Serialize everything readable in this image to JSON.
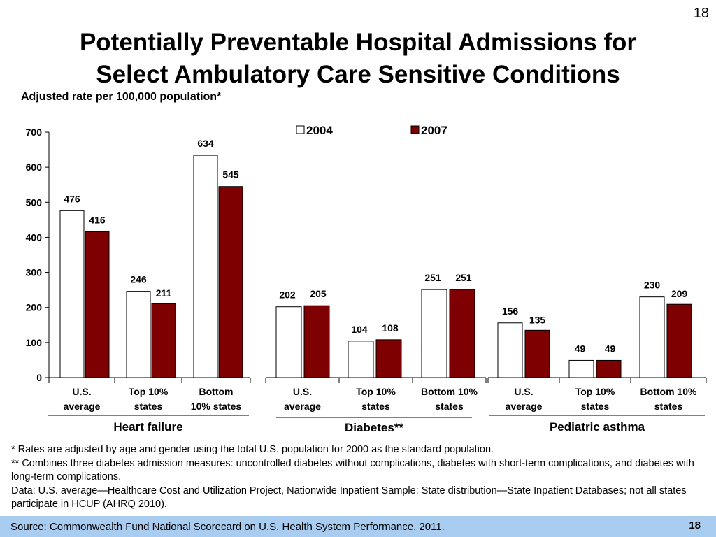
{
  "slide": {
    "page_number": "18",
    "title_line1": "Potentially Preventable Hospital Admissions for",
    "title_line2": "Select Ambulatory Care Sensitive Conditions",
    "subtitle": "Adjusted rate per 100,000 population*"
  },
  "chart_data": {
    "type": "bar",
    "ylim": [
      0,
      700
    ],
    "yticks": [
      0,
      100,
      200,
      300,
      400,
      500,
      600,
      700
    ],
    "legend": [
      "2004",
      "2007"
    ],
    "legend_position": "top",
    "grid": false,
    "colors": {
      "2004": "#ffffff",
      "2007": "#7f0000"
    },
    "groups": [
      {
        "name": "Heart failure",
        "categories": [
          {
            "line1": "U.S.",
            "line2": "average"
          },
          {
            "line1": "Top 10%",
            "line2": "states"
          },
          {
            "line1": "Bottom",
            "line2": "10% states"
          }
        ],
        "series": [
          {
            "name": "2004",
            "values": [
              476,
              246,
              634
            ]
          },
          {
            "name": "2007",
            "values": [
              416,
              211,
              545
            ]
          }
        ]
      },
      {
        "name": "Diabetes**",
        "categories": [
          {
            "line1": "U.S.",
            "line2": "average"
          },
          {
            "line1": "Top 10%",
            "line2": "states"
          },
          {
            "line1": "Bottom 10%",
            "line2": "states"
          }
        ],
        "series": [
          {
            "name": "2004",
            "values": [
              202,
              104,
              251
            ]
          },
          {
            "name": "2007",
            "values": [
              205,
              108,
              251
            ]
          }
        ]
      },
      {
        "name": "Pediatric asthma",
        "categories": [
          {
            "line1": "U.S.",
            "line2": "average"
          },
          {
            "line1": "Top 10%",
            "line2": "states"
          },
          {
            "line1": "Bottom 10%",
            "line2": "states"
          }
        ],
        "series": [
          {
            "name": "2004",
            "values": [
              156,
              49,
              230
            ]
          },
          {
            "name": "2007",
            "values": [
              135,
              49,
              209
            ]
          }
        ]
      }
    ]
  },
  "footnotes": {
    "line1": "* Rates are adjusted by age and gender using the total U.S. population for 2000 as the standard population.",
    "line2": "** Combines three diabetes admission measures: uncontrolled diabetes without complications, diabetes with short-term complications, and diabetes with long-term complications.",
    "line3": "Data: U.S. average—Healthcare Cost and Utilization Project, Nationwide Inpatient Sample; State distribution—State Inpatient Databases; not all states participate in HCUP (AHRQ 2010)."
  },
  "source": {
    "text": "Source: Commonwealth Fund National Scorecard on U.S. Health System Performance, 2011.",
    "page_number": "18"
  }
}
